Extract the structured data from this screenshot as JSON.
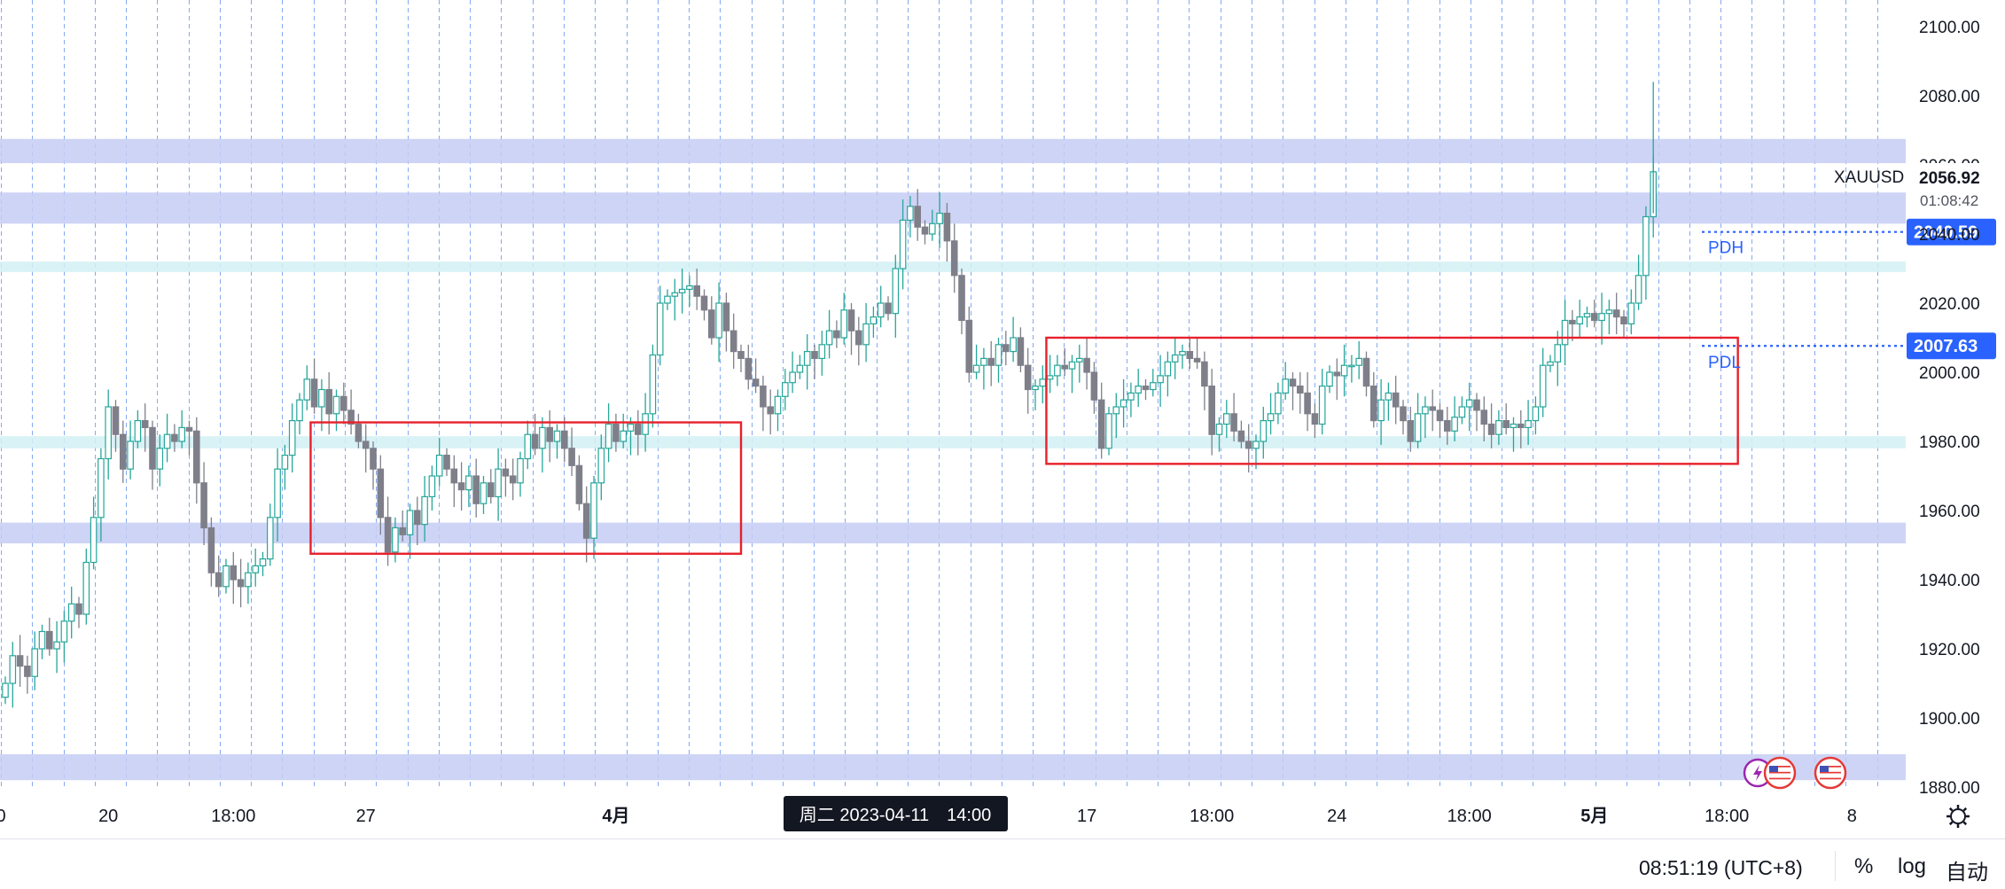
{
  "chart_data": {
    "type": "candlestick",
    "symbol": "XAUUSD",
    "y_axis": {
      "ylim": [
        1876,
        2108
      ],
      "ticks": [
        "2100.00",
        "2080.00",
        "2060.00",
        "2040.00",
        "2020.00",
        "2000.00",
        "1980.00",
        "1960.00",
        "1940.00",
        "1920.00",
        "1900.00",
        "1880.00"
      ],
      "tick_values": [
        2100,
        2080,
        2060,
        2040,
        2020,
        2000,
        1980,
        1960,
        1940,
        1920,
        1900,
        1880
      ]
    },
    "x_axis": {
      "labels": [
        {
          "text": "0",
          "idx": -0.6,
          "bold": false
        },
        {
          "text": "20",
          "idx": 14,
          "bold": false
        },
        {
          "text": "18:00",
          "idx": 31,
          "bold": false
        },
        {
          "text": "27",
          "idx": 49,
          "bold": false
        },
        {
          "text": "4月",
          "idx": 83,
          "bold": true
        },
        {
          "text": "17",
          "idx": 147,
          "bold": false
        },
        {
          "text": "18:00",
          "idx": 164,
          "bold": false
        },
        {
          "text": "24",
          "idx": 181,
          "bold": false
        },
        {
          "text": "18:00",
          "idx": 199,
          "bold": false
        },
        {
          "text": "5月",
          "idx": 216,
          "bold": true
        },
        {
          "text": "18:00",
          "idx": 234,
          "bold": false
        },
        {
          "text": "8",
          "idx": 251,
          "bold": false
        }
      ]
    },
    "crosshair_time_label": "周二 2023-04-11　14:00",
    "symbol_label": "XAUUSD",
    "last_price": {
      "value": 2056.92,
      "label": "2056.92",
      "countdown": "01:08:42"
    },
    "levels": [
      {
        "name": "PDH",
        "value": 2040.59,
        "label": "2040.59",
        "color": "#2962ff"
      },
      {
        "name": "PDL",
        "value": 2007.63,
        "label": "2007.63",
        "color": "#2962ff"
      }
    ],
    "zones": [
      {
        "from": 2060.5,
        "to": 2067.5,
        "color": "#c5cdf3"
      },
      {
        "from": 2043,
        "to": 2052,
        "color": "#c5cdf3"
      },
      {
        "from": 2029,
        "to": 2032,
        "color": "#d2f0f5"
      },
      {
        "from": 1978,
        "to": 1981.5,
        "color": "#d2f0f5"
      },
      {
        "from": 1950.5,
        "to": 1956.5,
        "color": "#c5cdf3"
      },
      {
        "from": 1882,
        "to": 1889.5,
        "color": "#c5cdf3"
      }
    ],
    "rectangles": [
      {
        "i0": 41.5,
        "i1": 100,
        "top": 1985.5,
        "bottom": 1947.5,
        "color": "#e8202a"
      },
      {
        "i0": 141.5,
        "i1": 235.5,
        "top": 2010,
        "bottom": 1973.5,
        "color": "#e8202a"
      }
    ],
    "colors": {
      "up": "#26a69a",
      "down": "#7f7f8a",
      "vline": "#5b8def"
    },
    "candles_close": [
      1910,
      1918,
      1915,
      1912,
      1920,
      1925,
      1920,
      1922,
      1928,
      1933,
      1930,
      1945,
      1958,
      1975,
      1990,
      1982,
      1972,
      1980,
      1986,
      1984,
      1972,
      1978,
      1982,
      1980,
      1984,
      1983,
      1968,
      1955,
      1942,
      1938,
      1944,
      1940,
      1938,
      1942,
      1944,
      1946,
      1958,
      1972,
      1976,
      1986,
      1992,
      1998,
      1990,
      1995,
      1988,
      1993,
      1989,
      1985,
      1980,
      1978,
      1972,
      1958,
      1948,
      1955,
      1953,
      1960,
      1956,
      1964,
      1970,
      1976,
      1972,
      1968,
      1966,
      1970,
      1962,
      1968,
      1964,
      1972,
      1970,
      1968,
      1975,
      1982,
      1978,
      1984,
      1980,
      1983,
      1978,
      1973,
      1962,
      1952,
      1968,
      1978,
      1985,
      1980,
      1983,
      1985,
      1982,
      1988,
      2005,
      2020,
      2022,
      2023,
      2024,
      2025,
      2022,
      2018,
      2010,
      2020,
      2012,
      2006,
      2004,
      1998,
      1996,
      1990,
      1988,
      1993,
      1997,
      2000,
      2002,
      2006,
      2004,
      2008,
      2012,
      2010,
      2018,
      2012,
      2008,
      2014,
      2016,
      2020,
      2017,
      2030,
      2044,
      2048,
      2042,
      2040,
      2043,
      2046,
      2038,
      2028,
      2015,
      2000,
      2002,
      2004,
      2002,
      2008,
      2006,
      2010,
      2002,
      1995,
      1996,
      1998,
      1999,
      2002,
      2001,
      2003,
      2004,
      2000,
      1992,
      1978,
      1988,
      1990,
      1992,
      1994,
      1996,
      1995,
      1997,
      1999,
      2003,
      2005,
      2006,
      2004,
      2003,
      1996,
      1982,
      1985,
      1988,
      1983,
      1980,
      1978,
      1980,
      1986,
      1988,
      1994,
      1998,
      1996,
      1994,
      1988,
      1985,
      1996,
      2000,
      1999,
      2002,
      2002,
      2004,
      1996,
      1986,
      1992,
      1994,
      1990,
      1986,
      1980,
      1988,
      1990,
      1989,
      1986,
      1983,
      1987,
      1990,
      1992,
      1989,
      1985,
      1982,
      1986,
      1984,
      1985,
      1984,
      1986,
      1990,
      2002,
      2003,
      2008,
      2015,
      2014,
      2016,
      2017,
      2015,
      2017,
      2018,
      2016,
      2014,
      2020,
      2028,
      2045,
      2058
    ],
    "candles_range_low": 1897,
    "candles_range_high": 2084
  },
  "bottom_bar": {
    "clock": "08:51:19 (UTC+8)",
    "percent_label": "%",
    "log_label": "log",
    "auto_label": "自动"
  },
  "icons": {
    "settings": "gear-icon",
    "events": [
      "lightning-icon",
      "us-flag-icon",
      "us-flag-icon",
      "us-flag-icon"
    ]
  }
}
